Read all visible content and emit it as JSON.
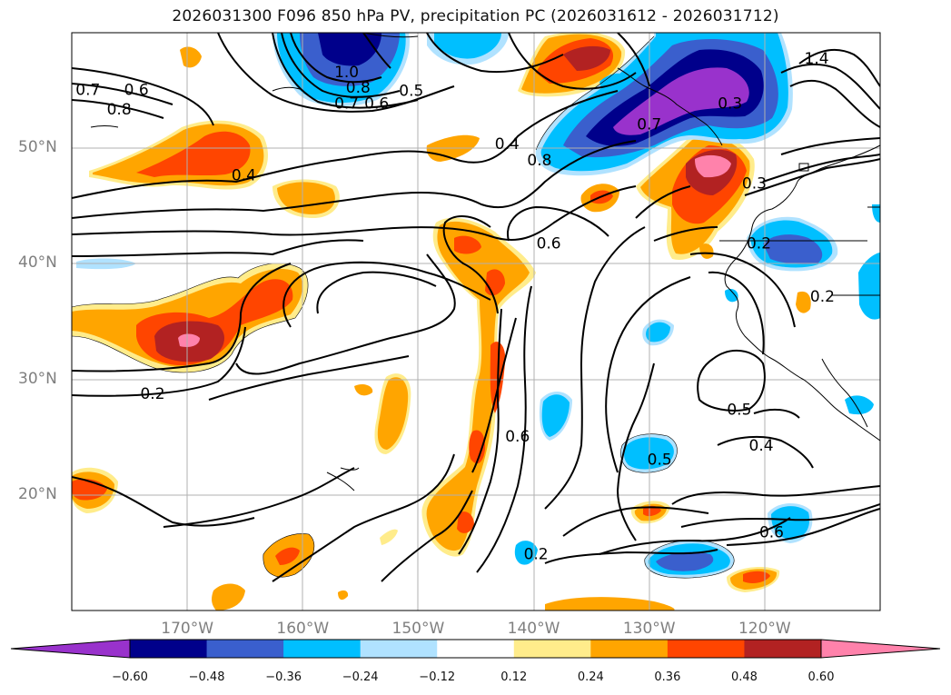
{
  "title": "2026031300 F096 850 hPa PV, precipitation PC (2026031612 - 2026031712)",
  "map": {
    "lon_range": [
      180,
      110
    ],
    "lat_range": [
      10,
      60
    ],
    "lat_ticks": [
      {
        "lat": 50,
        "label": "50°N"
      },
      {
        "lat": 40,
        "label": "40°N"
      },
      {
        "lat": 30,
        "label": "30°N"
      },
      {
        "lat": 20,
        "label": "20°N"
      }
    ],
    "lon_ticks": [
      {
        "lon": 170,
        "label": "170°W"
      },
      {
        "lon": 160,
        "label": "160°W"
      },
      {
        "lon": 150,
        "label": "150°W"
      },
      {
        "lon": 140,
        "label": "140°W"
      },
      {
        "lon": 130,
        "label": "130°W"
      },
      {
        "lon": 120,
        "label": "120°W"
      }
    ],
    "contour_labels": [
      {
        "text": "0.7",
        "lon": 178.6,
        "lat": 55.1
      },
      {
        "text": "0.6",
        "lon": 174.4,
        "lat": 55.1
      },
      {
        "text": "0.8",
        "lon": 175.9,
        "lat": 53.4
      },
      {
        "text": "0.4",
        "lon": 165.1,
        "lat": 47.7
      },
      {
        "text": "1.0",
        "lon": 156.2,
        "lat": 56.6
      },
      {
        "text": "0.8",
        "lon": 155.2,
        "lat": 55.3
      },
      {
        "text": "0.7",
        "lon": 156.2,
        "lat": 53.9
      },
      {
        "text": "0.6",
        "lon": 153.6,
        "lat": 53.9
      },
      {
        "text": "0.5",
        "lon": 150.6,
        "lat": 55.0
      },
      {
        "text": "0.4",
        "lon": 142.3,
        "lat": 50.4
      },
      {
        "text": "0.8",
        "lon": 139.5,
        "lat": 49.0
      },
      {
        "text": "0.7",
        "lon": 130.0,
        "lat": 52.1
      },
      {
        "text": "0.3",
        "lon": 123.0,
        "lat": 53.9
      },
      {
        "text": "1.4",
        "lon": 115.5,
        "lat": 57.8
      },
      {
        "text": "0.3",
        "lon": 120.9,
        "lat": 47.0
      },
      {
        "text": "0.6",
        "lon": 138.7,
        "lat": 41.8
      },
      {
        "text": "0.2",
        "lon": 120.5,
        "lat": 41.8
      },
      {
        "text": "0.2",
        "lon": 115.0,
        "lat": 37.2
      },
      {
        "text": "0.2",
        "lon": 173.0,
        "lat": 28.8
      },
      {
        "text": "0.6",
        "lon": 141.4,
        "lat": 25.1
      },
      {
        "text": "0.5",
        "lon": 122.2,
        "lat": 27.4
      },
      {
        "text": "0.4",
        "lon": 120.3,
        "lat": 24.3
      },
      {
        "text": "0.5",
        "lon": 129.1,
        "lat": 23.1
      },
      {
        "text": "0.6",
        "lon": 119.4,
        "lat": 16.8
      },
      {
        "text": "0.2",
        "lon": 139.8,
        "lat": 14.9
      }
    ]
  },
  "colorbar": {
    "colors": [
      "#9932cc",
      "#00008b",
      "#3a5fcd",
      "#00bfff",
      "#b0e2ff",
      "#ffffff",
      "#ffec8b",
      "#ffa500",
      "#ff4500",
      "#b22222",
      "#ff82ab"
    ],
    "labels": [
      "−0.60",
      "−0.48",
      "−0.36",
      "−0.24",
      "−0.12",
      "0.12",
      "0.24",
      "0.36",
      "0.48",
      "0.60"
    ]
  }
}
